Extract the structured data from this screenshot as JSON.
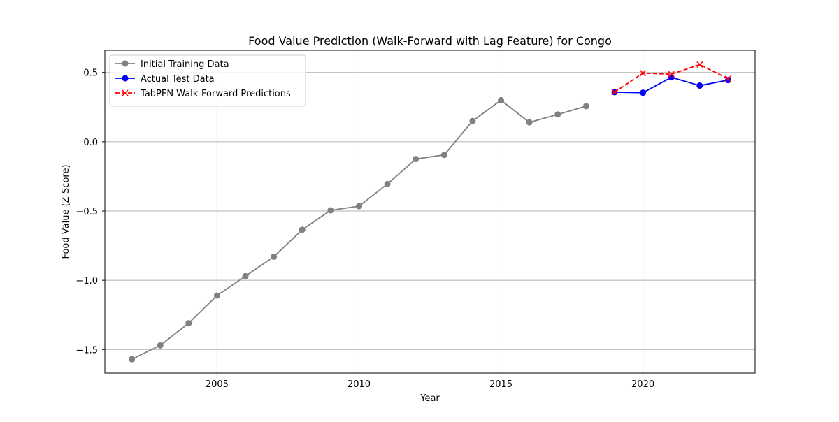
{
  "chart_data": {
    "type": "line",
    "title": "Food Value Prediction (Walk-Forward with Lag Feature) for Congo",
    "xlabel": "Year",
    "ylabel": "Food Value (Z-Score)",
    "xlim": [
      2001.05,
      2023.95
    ],
    "ylim": [
      -1.67,
      0.66
    ],
    "xticks": [
      2005,
      2010,
      2015,
      2020
    ],
    "yticks": [
      -1.5,
      -1.0,
      -0.5,
      0.0,
      0.5
    ],
    "xtick_labels": [
      "2005",
      "2010",
      "2015",
      "2020"
    ],
    "ytick_labels": [
      "−1.5",
      "−1.0",
      "−0.5",
      "0.0",
      "0.5"
    ],
    "grid": true,
    "legend_position": "top-left",
    "series": [
      {
        "name": "Initial Training Data",
        "color": "#808080",
        "linestyle": "solid",
        "marker": "circle",
        "x": [
          2002,
          2003,
          2004,
          2005,
          2006,
          2007,
          2008,
          2009,
          2010,
          2011,
          2012,
          2013,
          2014,
          2015,
          2016,
          2017,
          2018
        ],
        "y": [
          -1.57,
          -1.47,
          -1.31,
          -1.11,
          -0.97,
          -0.83,
          -0.635,
          -0.495,
          -0.465,
          -0.305,
          -0.125,
          -0.095,
          0.15,
          0.3,
          0.14,
          0.197,
          0.257
        ]
      },
      {
        "name": "Actual Test Data",
        "color": "#0000ff",
        "linestyle": "solid",
        "marker": "circle",
        "x": [
          2019,
          2020,
          2021,
          2022,
          2023
        ],
        "y": [
          0.358,
          0.354,
          0.465,
          0.405,
          0.445
        ]
      },
      {
        "name": "TabPFN Walk-Forward Predictions",
        "color": "#ff0000",
        "linestyle": "dashed",
        "marker": "x",
        "x": [
          2019,
          2020,
          2021,
          2022,
          2023
        ],
        "y": [
          0.358,
          0.495,
          0.487,
          0.557,
          0.455
        ]
      }
    ]
  }
}
